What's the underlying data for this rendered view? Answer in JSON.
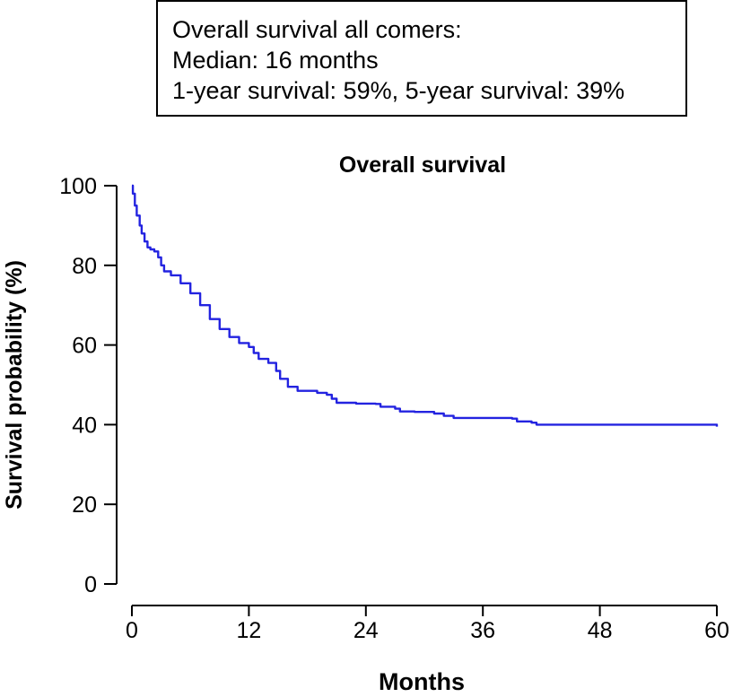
{
  "summary": {
    "lines": [
      "Overall survival all comers:",
      "Median: 16 months",
      "1-year survival: 59%, 5-year survival: 39%"
    ]
  },
  "colors": {
    "curve": "#2323e0",
    "axis": "#000000"
  },
  "chart_data": {
    "type": "line",
    "title": "Overall survival",
    "xlabel": "Months",
    "ylabel": "Survival probability (%)",
    "xlim": [
      0,
      60
    ],
    "ylim": [
      0,
      100
    ],
    "xticks": [
      0,
      12,
      24,
      36,
      48,
      60
    ],
    "yticks": [
      0,
      20,
      40,
      60,
      80,
      100
    ],
    "grid": false,
    "legend": "none",
    "series": [
      {
        "values_xy": [
          [
            0,
            100
          ],
          [
            0.1,
            98
          ],
          [
            0.3,
            95
          ],
          [
            0.5,
            92.5
          ],
          [
            0.8,
            90
          ],
          [
            1.0,
            88
          ],
          [
            1.3,
            86
          ],
          [
            1.6,
            84.5
          ],
          [
            1.9,
            84
          ],
          [
            2.3,
            83.5
          ],
          [
            2.7,
            82
          ],
          [
            3.0,
            80
          ],
          [
            3.3,
            78.5
          ],
          [
            4.0,
            77.5
          ],
          [
            5.0,
            75.5
          ],
          [
            6.0,
            73
          ],
          [
            7.0,
            70
          ],
          [
            8.0,
            66.5
          ],
          [
            9.0,
            64
          ],
          [
            10.0,
            62
          ],
          [
            11.0,
            60.5
          ],
          [
            12.0,
            59.5
          ],
          [
            12.5,
            58
          ],
          [
            13.0,
            56.5
          ],
          [
            14.0,
            55.5
          ],
          [
            14.8,
            53.5
          ],
          [
            15.2,
            51.5
          ],
          [
            16.0,
            49.5
          ],
          [
            17.0,
            48.5
          ],
          [
            19.0,
            48
          ],
          [
            20.0,
            47.5
          ],
          [
            20.5,
            46.5
          ],
          [
            21.0,
            45.5
          ],
          [
            23.0,
            45.3
          ],
          [
            25.0,
            45.2
          ],
          [
            25.5,
            44.5
          ],
          [
            27.0,
            44
          ],
          [
            27.5,
            43.3
          ],
          [
            29.0,
            43.2
          ],
          [
            31.0,
            42.8
          ],
          [
            32.0,
            42.2
          ],
          [
            33.0,
            41.7
          ],
          [
            39.0,
            41.5
          ],
          [
            39.5,
            40.8
          ],
          [
            41.0,
            40.5
          ],
          [
            41.5,
            40
          ],
          [
            58.0,
            40
          ],
          [
            59.5,
            40
          ],
          [
            60.0,
            39.5
          ]
        ]
      }
    ]
  }
}
